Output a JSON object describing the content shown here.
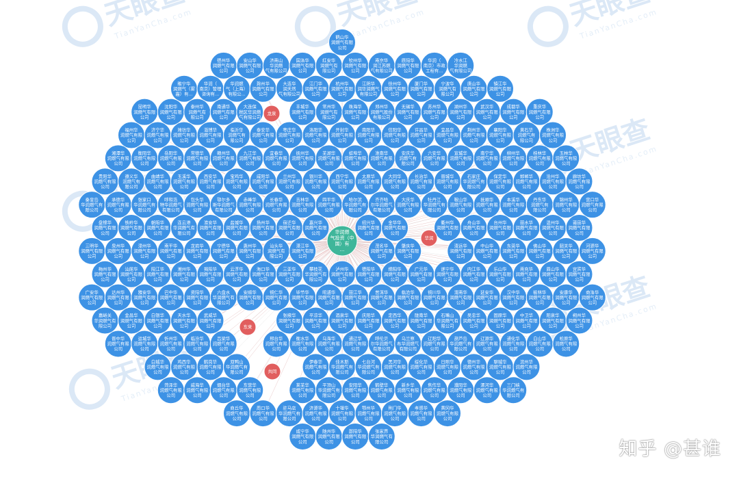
{
  "watermark": {
    "brand_text": "天眼查",
    "brand_latin": "TianYanCha.com"
  },
  "credit": "知乎 @甚谁",
  "colors": {
    "node_blue": "#3d92e5",
    "node_red": "#e15e5e",
    "node_center": "#3fb69a",
    "edge_red": "#e2b5b5",
    "edge_gray": "#d4d4d4"
  },
  "center_node": {
    "label": [
      "华润燃",
      "气投资（中",
      "国）有",
      "..."
    ]
  },
  "node_labels": [
    [
      "鹤山华",
      "润燃气有限",
      "公司"
    ],
    [
      "德州华",
      "润燃气有限",
      "公司"
    ],
    [
      "安山华",
      "润燃气有限",
      "公司"
    ],
    [
      "济南山",
      "华润燃",
      "气有限公司"
    ],
    [
      "国洛华",
      "润燃气有限",
      "公司"
    ],
    [
      "红安华",
      "润燃气有",
      "限公司"
    ],
    [
      "钦州华",
      "润燃气有限",
      "公司"
    ],
    [
      "南京华",
      "润江苏燃",
      "气有限公司"
    ],
    [
      "原阳华",
      "润燃气有限",
      "公司"
    ],
    [
      "华润（",
      "南京）市政",
      "工程有..."
    ],
    [
      "冷水江",
      "华润燃",
      "气有限公司"
    ],
    [
      "睢宁华",
      "润燃气（雾",
      "霾）有..."
    ],
    [
      "华润（",
      "南京）管理",
      "咨询有..."
    ],
    [
      "华润燃",
      "气（上海）",
      "有限公..."
    ],
    [
      "滁州华",
      "润燃气有限",
      "公司"
    ],
    [
      "大连华",
      "润天然",
      "气有限公司"
    ],
    [
      "江门华",
      "润燃气有限",
      "公司"
    ],
    [
      "杭州华",
      "润燃气有限",
      "公司"
    ],
    [
      "江阴华",
      "润华润燃气",
      "有限公司"
    ],
    [
      "徐州华",
      "润燃气有限",
      "公司"
    ],
    [
      "厦门华",
      "润燃气有限",
      "公司"
    ],
    [
      "宁波华",
      "润燃气有",
      "限公司"
    ],
    [
      "唐山华",
      "润燃气有限",
      "公司"
    ],
    [
      "镇江华",
      "润燃气有限",
      "公司"
    ],
    [
      "昆明华",
      "润燃气有限",
      "公司"
    ],
    [
      "沈阳华",
      "润燃气有限",
      "公司"
    ],
    [
      "泰州华",
      "润燃气有",
      "限公司"
    ],
    [
      "南通华",
      "润燃气有限",
      "公司"
    ],
    [
      "大连保",
      "税区华润燃",
      "气有限公司"
    ],
    [
      "丰城华",
      "润燃气有限",
      "公司"
    ],
    [
      "常州华",
      "润燃气有",
      "限公司"
    ],
    [
      "珠海华",
      "润燃气有限",
      "公司"
    ],
    [
      "郑州华",
      "润燃气股份",
      "有限公司"
    ],
    [
      "无锡华",
      "润燃气有限",
      "公司"
    ],
    [
      "苏州华",
      "润燃气有限",
      "公司"
    ],
    [
      "湖州华",
      "润燃气有限",
      "公司"
    ],
    [
      "武汉华",
      "润燃气有限",
      "公司"
    ],
    [
      "成都华",
      "润燃气有限",
      "公司"
    ],
    [
      "重庆华",
      "润燃气有限",
      "公司"
    ],
    [
      "福州华",
      "润燃气有限",
      "公司"
    ],
    [
      "济宁华",
      "润燃气有限",
      "公司"
    ],
    [
      "潍坊华",
      "润燃气有限",
      "公司"
    ],
    [
      "淄博华",
      "润燃气有限",
      "公司"
    ],
    [
      "临沂华",
      "润燃气有",
      "限公司"
    ],
    [
      "泰安华",
      "润燃气有限",
      "公司"
    ],
    [
      "枣庄华",
      "润燃气有限",
      "公司"
    ],
    [
      "洛阳华",
      "润燃气有限",
      "公司"
    ],
    [
      "开封华",
      "润燃气有限",
      "公司"
    ],
    [
      "南阳华",
      "润燃气有限",
      "公司"
    ],
    [
      "信阳华",
      "润燃气有限",
      "公司"
    ],
    [
      "许昌华",
      "润燃气有限",
      "公司"
    ],
    [
      "宜昌华",
      "润燃气有限",
      "公司"
    ],
    [
      "荆州华",
      "润燃气有限",
      "公司"
    ],
    [
      "襄阳华",
      "润燃气有限",
      "公司"
    ],
    [
      "黄石华",
      "润燃气有",
      "限公司"
    ],
    [
      "株洲华",
      "润燃气有限",
      "公司"
    ],
    [
      "湘潭华",
      "润燃气有限",
      "公司"
    ],
    [
      "衡阳华",
      "润燃气有限",
      "公司"
    ],
    [
      "岳阳华",
      "润燃气有限",
      "公司"
    ],
    [
      "常德华",
      "润燃气有限",
      "公司"
    ],
    [
      "赣州华",
      "润燃气有限",
      "公司"
    ],
    [
      "九江华",
      "润燃气有限",
      "公司"
    ],
    [
      "宜春华",
      "润燃气有限",
      "公司"
    ],
    [
      "抚州华",
      "润燃气有限",
      "公司"
    ],
    [
      "芜湖华",
      "润燃气有限",
      "公司"
    ],
    [
      "蚌埠华",
      "润燃气有限",
      "公司"
    ],
    [
      "淮南华",
      "润燃气有限",
      "公司"
    ],
    [
      "安庆华",
      "润燃气有",
      "限公司"
    ],
    [
      "六安华",
      "润燃气有限",
      "公司"
    ],
    [
      "宣城华",
      "润燃气有限",
      "公司"
    ],
    [
      "南宁华",
      "润燃气有限",
      "公司"
    ],
    [
      "柳州华",
      "润燃气有限",
      "公司"
    ],
    [
      "桂林华",
      "润燃气有限",
      "公司"
    ],
    [
      "玉林华",
      "润燃气有限",
      "公司"
    ],
    [
      "贵阳华",
      "润燃气有限",
      "公司"
    ],
    [
      "遵义华",
      "润燃气有",
      "限公司"
    ],
    [
      "曲靖华",
      "润燃气有限",
      "公司"
    ],
    [
      "玉溪华",
      "润燃气有限",
      "公司"
    ],
    [
      "西安华",
      "润燃气有限",
      "公司"
    ],
    [
      "宝鸡华",
      "润燃气有限",
      "公司"
    ],
    [
      "咸阳华",
      "润燃气有限",
      "公司"
    ],
    [
      "兰州华",
      "润燃气有限",
      "公司"
    ],
    [
      "银川华",
      "润燃气有限",
      "公司"
    ],
    [
      "西宁华",
      "润燃气有限",
      "公司"
    ],
    [
      "太原华",
      "润燃气有限",
      "公司"
    ],
    [
      "大同华",
      "润燃气有限",
      "公司"
    ],
    [
      "长治华",
      "润燃气有限",
      "公司"
    ],
    [
      "晋城华",
      "润燃气有限",
      "公司"
    ],
    [
      "石家庄",
      "华润燃气有",
      "限公司"
    ],
    [
      "保定华",
      "润燃气有限",
      "公司"
    ],
    [
      "邯郸华",
      "润燃气有限",
      "公司"
    ],
    [
      "沧州华",
      "润燃气有限",
      "公司"
    ],
    [
      "廊坊华",
      "润燃气有限",
      "公司"
    ],
    [
      "秦皇岛",
      "华润燃气有",
      "限公司"
    ],
    [
      "承德华",
      "润燃气有限",
      "公司"
    ],
    [
      "张家口",
      "华润燃气有",
      "限公司"
    ],
    [
      "呼和浩",
      "特华润燃气",
      "有限公司"
    ],
    [
      "包头华",
      "润燃气有限",
      "公司"
    ],
    [
      "鄂尔多",
      "斯华润燃气",
      "有限公司"
    ],
    [
      "赤峰华",
      "润燃气有限",
      "公司"
    ],
    [
      "长春华",
      "润燃气有限",
      "公司"
    ],
    [
      "吉林华",
      "润燃气有限",
      "公司"
    ],
    [
      "四平华",
      "润燃气有限",
      "公司"
    ],
    [
      "哈尔滨",
      "华润燃气有",
      "限公司"
    ],
    [
      "齐齐哈",
      "尔华润燃气",
      "有限公司"
    ],
    [
      "大庆华",
      "润燃气有限",
      "公司"
    ],
    [
      "牡丹江",
      "华润燃气有",
      "限公司"
    ],
    [
      "鞍山华",
      "润燃气有限",
      "公司"
    ],
    [
      "抚顺华",
      "润燃气有限",
      "公司"
    ],
    [
      "本溪华",
      "润燃气有限",
      "公司"
    ],
    [
      "丹东华",
      "润燃气有",
      "限公司"
    ],
    [
      "锦州华",
      "润燃气有限",
      "公司"
    ],
    [
      "营口华",
      "润燃气有限",
      "公司"
    ],
    [
      "盘锦华",
      "润燃气有限",
      "公司"
    ],
    [
      "铁岭华",
      "润燃气有限",
      "公司"
    ],
    [
      "朝阳华",
      "润燃气有限",
      "公司"
    ],
    [
      "连云港",
      "华润燃气有",
      "限公司"
    ],
    [
      "淮安华",
      "润燃气有限",
      "公司"
    ],
    [
      "盐城华",
      "润燃气有限",
      "公司"
    ],
    [
      "扬州华",
      "润燃气有限",
      "公司"
    ],
    [
      "宿迁华",
      "润燃气有限",
      "公司"
    ],
    [
      "嘉兴华",
      "润燃气有限",
      "公司"
    ],
    [
      "绍兴华",
      "润燃气有限",
      "公司"
    ],
    [
      "金华华",
      "润燃气有限",
      "公司"
    ],
    [
      "衢州华",
      "润燃气有限",
      "公司"
    ],
    [
      "舟山华",
      "润燃气有限",
      "公司"
    ],
    [
      "台州华",
      "润燃气有限",
      "公司"
    ],
    [
      "丽水华",
      "润燃气有限",
      "公司"
    ],
    [
      "温州华",
      "润燃气有限",
      "公司"
    ],
    [
      "莆田华",
      "润燃气有限",
      "公司"
    ],
    [
      "三明华",
      "润燃气有限",
      "公司"
    ],
    [
      "泉州华",
      "润燃气有限",
      "公司"
    ],
    [
      "漳州华",
      "润燃气有限",
      "公司"
    ],
    [
      "南平华",
      "润燃气有限",
      "公司"
    ],
    [
      "龙岩华",
      "润燃气有限",
      "公司"
    ],
    [
      "宁德华",
      "润燃气有限",
      "公司"
    ],
    [
      "惠州华",
      "润燃气有限",
      "公司"
    ],
    [
      "汕头华",
      "润燃气有",
      "限公司"
    ],
    [
      "湛江华",
      "润燃气有限",
      "公司"
    ],
    [
      "茂名华",
      "润燃气有限",
      "公司"
    ],
    [
      "肇庆华",
      "润燃气有限",
      "公司"
    ],
    [
      "清远华",
      "润燃气有限",
      "公司"
    ],
    [
      "中山华",
      "润燃气有限",
      "公司"
    ],
    [
      "东莞华",
      "润燃气有限",
      "公司"
    ],
    [
      "佛山华",
      "润燃气有限",
      "公司"
    ],
    [
      "韶关华",
      "润燃气有限",
      "公司"
    ],
    [
      "河源华",
      "润燃气有限",
      "公司"
    ],
    [
      "梅州华",
      "润燃气有限",
      "公司"
    ],
    [
      "汕尾华",
      "润燃气有限",
      "公司"
    ],
    [
      "阳江华",
      "润燃气有限",
      "公司"
    ],
    [
      "潮州华",
      "润燃气有限",
      "公司"
    ],
    [
      "揭阳华",
      "润燃气有限",
      "公司"
    ],
    [
      "云浮华",
      "润燃气有限",
      "公司"
    ],
    [
      "海口华",
      "润燃气有限",
      "公司"
    ],
    [
      "三亚华",
      "润燃气有限",
      "公司"
    ],
    [
      "攀枝花",
      "华润燃气有",
      "限公司"
    ],
    [
      "泸州华",
      "润燃气有限",
      "公司"
    ],
    [
      "德阳华",
      "润燃气有限",
      "公司"
    ],
    [
      "绵阳华",
      "润燃气有限",
      "公司"
    ],
    [
      "广元华",
      "润燃气有限",
      "公司"
    ],
    [
      "遂宁华",
      "润燃气有限",
      "公司"
    ],
    [
      "内江华",
      "润燃气有限",
      "公司"
    ],
    [
      "乐山华",
      "润燃气有限",
      "公司"
    ],
    [
      "南充华",
      "润燃气有限",
      "公司"
    ],
    [
      "眉山华",
      "润燃气有限",
      "公司"
    ],
    [
      "宜宾华",
      "润燃气有限",
      "公司"
    ],
    [
      "广安华",
      "润燃气有限",
      "公司"
    ],
    [
      "达州华",
      "润燃气有限",
      "公司"
    ],
    [
      "雅安华",
      "润燃气有限",
      "公司"
    ],
    [
      "巴中华",
      "润燃气有限",
      "公司"
    ],
    [
      "资阳华",
      "润燃气有限",
      "公司"
    ],
    [
      "六盘水",
      "华润燃气有",
      "限公司"
    ],
    [
      "安顺华",
      "润燃气有限",
      "公司"
    ],
    [
      "铜仁华",
      "润燃气有限",
      "公司"
    ],
    [
      "毕节华",
      "润燃气有限",
      "公司"
    ],
    [
      "昭通华",
      "润燃气有限",
      "公司"
    ],
    [
      "丽江华",
      "润燃气有限",
      "公司"
    ],
    [
      "普洱华",
      "润燃气有限",
      "公司"
    ],
    [
      "临沧华",
      "润燃气有限",
      "公司"
    ],
    [
      "铜川华",
      "润燃气有限",
      "公司"
    ],
    [
      "渭南华",
      "润燃气有限",
      "公司"
    ],
    [
      "延安华",
      "润燃气有限",
      "公司"
    ],
    [
      "汉中华",
      "润燃气有限",
      "公司"
    ],
    [
      "榆林华",
      "润燃气有限",
      "公司"
    ],
    [
      "安康华",
      "润燃气有限",
      "公司"
    ],
    [
      "商洛华",
      "润燃气有限",
      "公司"
    ],
    [
      "嘉峪关",
      "华润燃气有",
      "限公司"
    ],
    [
      "金昌华",
      "润燃气有限",
      "公司"
    ],
    [
      "白银华",
      "润燃气有限",
      "公司"
    ],
    [
      "天水华",
      "润燃气有限",
      "公司"
    ],
    [
      "武威华",
      "润燃气有限",
      "公司"
    ],
    [
      "张掖华",
      "润燃气有限",
      "公司"
    ],
    [
      "平凉华",
      "润燃气有限",
      "公司"
    ],
    [
      "酒泉华",
      "润燃气有限",
      "公司"
    ],
    [
      "庆阳华",
      "润燃气有限",
      "公司"
    ],
    [
      "定西华",
      "润燃气有限",
      "公司"
    ],
    [
      "陇南华",
      "润燃气有限",
      "公司"
    ],
    [
      "石嘴山",
      "华润燃气有",
      "限公司"
    ],
    [
      "吴忠华",
      "润燃气有限",
      "公司"
    ],
    [
      "固原华",
      "润燃气有限",
      "公司"
    ],
    [
      "中卫华",
      "润燃气有限",
      "公司"
    ],
    [
      "阳泉华",
      "润燃气有限",
      "公司"
    ],
    [
      "朔州华",
      "润燃气有限",
      "公司"
    ],
    [
      "晋中华",
      "润燃气有限",
      "公司"
    ],
    [
      "运城华",
      "润燃气有限",
      "公司"
    ],
    [
      "忻州华",
      "润燃气有限",
      "公司"
    ],
    [
      "临汾华",
      "润燃气有限",
      "公司"
    ],
    [
      "吕梁华",
      "润燃气有限",
      "公司"
    ],
    [
      "邢台华",
      "润燃气有限",
      "公司"
    ],
    [
      "衡水华",
      "润燃气有限",
      "公司"
    ],
    [
      "乌海华",
      "润燃气有限",
      "公司"
    ],
    [
      "通辽华",
      "润燃气有限",
      "公司"
    ],
    [
      "呼伦贝",
      "尔华润燃气",
      "有限公司"
    ],
    [
      "乌兰察",
      "布华润燃气",
      "有限公司"
    ],
    [
      "辽阳华",
      "润燃气有限",
      "公司"
    ],
    [
      "葫芦岛",
      "华润燃气有",
      "限公司"
    ],
    [
      "辽源华",
      "润燃气有限",
      "公司"
    ],
    [
      "通化华",
      "润燃气有限",
      "公司"
    ],
    [
      "白山华",
      "润燃气有限",
      "公司"
    ],
    [
      "松原华",
      "润燃气有限",
      "公司"
    ],
    [
      "白城华",
      "润燃气有限",
      "公司"
    ],
    [
      "鸡西华",
      "润燃气有限",
      "公司"
    ],
    [
      "鹤岗华",
      "润燃气有限",
      "公司"
    ],
    [
      "双鸭山",
      "华润燃气有",
      "限公司"
    ],
    [
      "伊春华",
      "润燃气有限",
      "公司"
    ],
    [
      "佳木斯",
      "华润燃气有",
      "限公司"
    ],
    [
      "七台河",
      "华润燃气有",
      "限公司"
    ],
    [
      "黑河华",
      "润燃气有限",
      "公司"
    ],
    [
      "绥化华",
      "润燃气有限",
      "公司"
    ],
    [
      "日照华",
      "润燃气有限",
      "公司"
    ],
    [
      "德州华",
      "润燃气有限",
      "公司"
    ],
    [
      "聊城华",
      "润燃气有限",
      "公司"
    ],
    [
      "滨州华",
      "润燃气有限",
      "公司"
    ],
    [
      "菏泽华",
      "润燃气有限",
      "公司"
    ],
    [
      "威海华",
      "润燃气有限",
      "公司"
    ],
    [
      "烟台华",
      "润燃气有限",
      "公司"
    ],
    [
      "东营华",
      "润燃气有限",
      "公司"
    ],
    [
      "莱芜华",
      "润燃气有限",
      "公司"
    ],
    [
      "平顶山",
      "华润燃气有",
      "限公司"
    ],
    [
      "安阳华",
      "润燃气有限",
      "公司"
    ],
    [
      "鹤壁华",
      "润燃气有限",
      "公司"
    ],
    [
      "新乡华",
      "润燃气有限",
      "公司"
    ],
    [
      "焦作华",
      "润燃气有限",
      "公司"
    ],
    [
      "濮阳华",
      "润燃气有限",
      "公司"
    ],
    [
      "漯河华",
      "润燃气有限",
      "公司"
    ],
    [
      "三门峡",
      "华润燃气有",
      "限公司"
    ],
    [
      "商丘华",
      "润燃气有限",
      "公司"
    ],
    [
      "周口华",
      "润燃气有限",
      "公司"
    ],
    [
      "驻马店",
      "华润燃气有",
      "限公司"
    ],
    [
      "济源华",
      "润燃气有限",
      "公司"
    ],
    [
      "十堰华",
      "润燃气有限",
      "公司"
    ],
    [
      "鄂州华",
      "润燃气有限",
      "公司"
    ],
    [
      "荆门华",
      "润燃气有限",
      "公司"
    ],
    [
      "孝感华",
      "润燃气有限",
      "公司"
    ],
    [
      "黄冈华",
      "润燃气有限",
      "公司"
    ],
    [
      "咸宁华",
      "润燃气有限",
      "公司"
    ],
    [
      "随州华",
      "润燃气有限",
      "公司"
    ],
    [
      "邵阳华",
      "润燃气有限",
      "公司"
    ],
    [
      "张家界",
      "华润燃气有",
      "限公司"
    ],
    [
      "益阳华",
      "润燃气有限",
      "公司"
    ],
    [
      "郴州华",
      "润燃气有限",
      "公司"
    ],
    [
      "永州华",
      "润燃气有限",
      "公司"
    ],
    [
      "怀化华",
      "润燃气有限",
      "公司"
    ],
    [
      "娄底华",
      "润燃气有限",
      "公司"
    ],
    [
      "景德镇",
      "华润燃气有",
      "限公司"
    ],
    [
      "萍乡华",
      "润燃气有限",
      "公司"
    ],
    [
      "新余华",
      "润燃气有限",
      "公司"
    ],
    [
      "鹰潭华",
      "润燃气有限",
      "公司"
    ],
    [
      "吉安华",
      "润燃气有限",
      "公司"
    ],
    [
      "上饶华",
      "润燃气有限",
      "公司"
    ],
    [
      "淮北华",
      "润燃气有限",
      "公司"
    ],
    [
      "铜陵华",
      "润燃气有限",
      "公司"
    ],
    [
      "黄山华",
      "润燃气有限",
      "公司"
    ],
    [
      "滁州华",
      "润燃气有限",
      "公司"
    ],
    [
      "阜阳华",
      "润燃气有限",
      "公司"
    ],
    [
      "宿州华",
      "润燃气有限",
      "公司"
    ],
    [
      "亳州华",
      "润燃气有限",
      "公司"
    ],
    [
      "池州华",
      "润燃气有限",
      "公司"
    ],
    [
      "马鞍山",
      "华润燃气有",
      "限公司"
    ],
    [
      "梧州华",
      "润燃气有限",
      "公司"
    ],
    [
      "北海华",
      "润燃气有限",
      "公司"
    ],
    [
      "防城港",
      "华润燃气有",
      "限公司"
    ],
    [
      "钦州华",
      "润燃气有限",
      "公司"
    ],
    [
      "贵港华",
      "润燃气有限",
      "公司"
    ],
    [
      "百色华",
      "润燃气有限",
      "公司"
    ],
    [
      "贺州华",
      "润燃气有限",
      "公司"
    ],
    [
      "河池华",
      "润燃气有限",
      "公司"
    ],
    [
      "来宾华",
      "润燃气有限",
      "公司"
    ],
    [
      "崇左华",
      "润燃气有限",
      "公司"
    ],
    [
      "自贡华",
      "润燃气有限",
      "公司"
    ],
    [
      "保山华",
      "润燃气有限",
      "公司"
    ],
    [
      "昌吉华",
      "润燃气有限",
      "公司"
    ]
  ],
  "red_node_labels": [
    [
      "龙泉"
    ],
    [
      "华润"
    ],
    [
      "东来"
    ],
    [
      "共同"
    ]
  ]
}
